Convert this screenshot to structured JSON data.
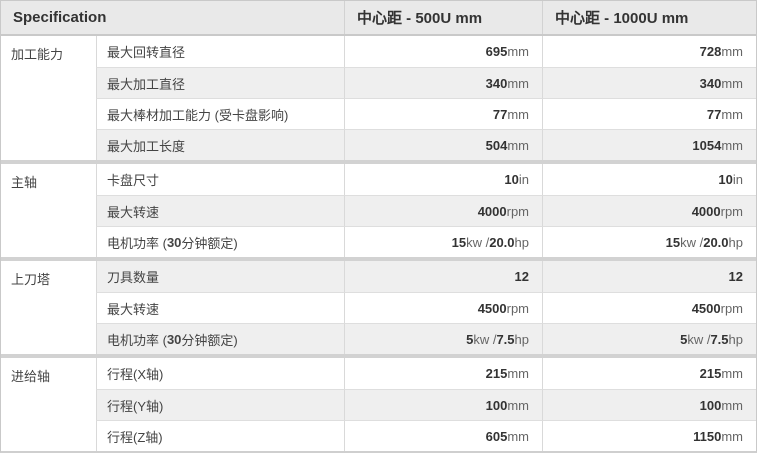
{
  "header": {
    "spec_label": "Specification",
    "col_500": "中心距 - 500U mm",
    "col_1000": "中心距 - 1000U mm"
  },
  "colors": {
    "header_bg": "#e9e9e9",
    "row_alt_bg": "#efefef",
    "cell_border": "#d9d9d9",
    "group_separator": "#d2d2d2",
    "outer_border": "#c9c9c9",
    "label_text": "#444444",
    "bold_value_text": "#333333",
    "unit_text": "#666666"
  },
  "groups": [
    {
      "name": "加工能力",
      "rows": [
        {
          "label": [
            [
              "最大回转直径",
              false
            ]
          ],
          "v500": [
            [
              "695",
              true
            ],
            [
              " mm",
              false
            ]
          ],
          "v1000": [
            [
              "728",
              true
            ],
            [
              " mm",
              false
            ]
          ]
        },
        {
          "label": [
            [
              "最大加工直径",
              false
            ]
          ],
          "v500": [
            [
              "340",
              true
            ],
            [
              " mm",
              false
            ]
          ],
          "v1000": [
            [
              "340",
              true
            ],
            [
              " mm",
              false
            ]
          ]
        },
        {
          "label": [
            [
              "最大棒材加工能力 (受卡盘影响)",
              false
            ]
          ],
          "v500": [
            [
              "77",
              true
            ],
            [
              " mm",
              false
            ]
          ],
          "v1000": [
            [
              "77",
              true
            ],
            [
              " mm",
              false
            ]
          ]
        },
        {
          "label": [
            [
              "最大加工长度",
              false
            ]
          ],
          "v500": [
            [
              "504",
              true
            ],
            [
              " mm",
              false
            ]
          ],
          "v1000": [
            [
              "1054",
              true
            ],
            [
              " mm",
              false
            ]
          ]
        }
      ]
    },
    {
      "name": "主轴",
      "rows": [
        {
          "label": [
            [
              "卡盘尺寸",
              false
            ]
          ],
          "v500": [
            [
              "10",
              true
            ],
            [
              " in",
              false
            ]
          ],
          "v1000": [
            [
              "10",
              true
            ],
            [
              " in",
              false
            ]
          ]
        },
        {
          "label": [
            [
              "最大转速",
              false
            ]
          ],
          "v500": [
            [
              "4000",
              true
            ],
            [
              " rpm",
              false
            ]
          ],
          "v1000": [
            [
              "4000",
              true
            ],
            [
              " rpm",
              false
            ]
          ]
        },
        {
          "label": [
            [
              "电机功率 (",
              false
            ],
            [
              "30",
              true
            ],
            [
              " 分钟额定)",
              false
            ]
          ],
          "v500": [
            [
              "15",
              true
            ],
            [
              " kw / ",
              false
            ],
            [
              "20.0",
              true
            ],
            [
              " hp",
              false
            ]
          ],
          "v1000": [
            [
              "15",
              true
            ],
            [
              " kw / ",
              false
            ],
            [
              "20.0",
              true
            ],
            [
              " hp",
              false
            ]
          ]
        }
      ]
    },
    {
      "name": "上刀塔",
      "rows": [
        {
          "label": [
            [
              "刀具数量",
              false
            ]
          ],
          "v500": [
            [
              "12",
              true
            ]
          ],
          "v1000": [
            [
              "12",
              true
            ]
          ]
        },
        {
          "label": [
            [
              "最大转速",
              false
            ]
          ],
          "v500": [
            [
              "4500",
              true
            ],
            [
              " rpm",
              false
            ]
          ],
          "v1000": [
            [
              "4500",
              true
            ],
            [
              " rpm",
              false
            ]
          ]
        },
        {
          "label": [
            [
              "电机功率 (",
              false
            ],
            [
              "30",
              true
            ],
            [
              " 分钟额定)",
              false
            ]
          ],
          "v500": [
            [
              "5",
              true
            ],
            [
              " kw / ",
              false
            ],
            [
              "7.5",
              true
            ],
            [
              " hp",
              false
            ]
          ],
          "v1000": [
            [
              "5",
              true
            ],
            [
              " kw / ",
              false
            ],
            [
              "7.5",
              true
            ],
            [
              " hp",
              false
            ]
          ]
        }
      ]
    },
    {
      "name": "进给轴",
      "rows": [
        {
          "label": [
            [
              "行程(X轴)",
              false
            ]
          ],
          "v500": [
            [
              "215",
              true
            ],
            [
              " mm",
              false
            ]
          ],
          "v1000": [
            [
              "215",
              true
            ],
            [
              " mm",
              false
            ]
          ]
        },
        {
          "label": [
            [
              "行程(Y轴)",
              false
            ]
          ],
          "v500": [
            [
              "100",
              true
            ],
            [
              " mm",
              false
            ]
          ],
          "v1000": [
            [
              "100",
              true
            ],
            [
              " mm",
              false
            ]
          ]
        },
        {
          "label": [
            [
              "行程(Z轴)",
              false
            ]
          ],
          "v500": [
            [
              "605",
              true
            ],
            [
              " mm",
              false
            ]
          ],
          "v1000": [
            [
              "1150",
              true
            ],
            [
              " mm",
              false
            ]
          ]
        }
      ]
    }
  ]
}
